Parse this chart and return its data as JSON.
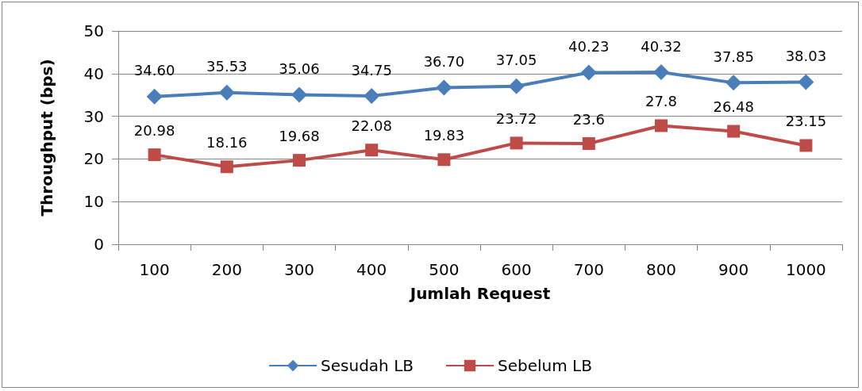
{
  "chart_data": {
    "type": "line",
    "xlabel": "Jumlah Request",
    "ylabel": "Throughput (bps)",
    "categories": [
      "100",
      "200",
      "300",
      "400",
      "500",
      "600",
      "700",
      "800",
      "900",
      "1000"
    ],
    "series": [
      {
        "name": "Sesudah LB",
        "color": "#4a7ebb",
        "marker": "diamond",
        "values": [
          34.6,
          35.53,
          35.06,
          34.75,
          36.7,
          37.05,
          40.23,
          40.32,
          37.85,
          38.03
        ],
        "value_labels": [
          "34.60",
          "35.53",
          "35.06",
          "34.75",
          "36.70",
          "37.05",
          "40.23",
          "40.32",
          "37.85",
          "38.03"
        ]
      },
      {
        "name": "Sebelum LB",
        "color": "#be4b48",
        "marker": "square",
        "values": [
          20.98,
          18.16,
          19.68,
          22.08,
          19.83,
          23.72,
          23.6,
          27.8,
          26.48,
          23.15
        ],
        "value_labels": [
          "20.98",
          "18.16",
          "19.68",
          "22.08",
          "19.83",
          "23.72",
          "23.6",
          "27.8",
          "26.48",
          "23.15"
        ]
      }
    ],
    "ylim": [
      0,
      50
    ],
    "yticks": [
      0,
      10,
      20,
      30,
      40,
      50
    ],
    "grid": "y",
    "legend": "bottom",
    "line_style": "solid"
  }
}
